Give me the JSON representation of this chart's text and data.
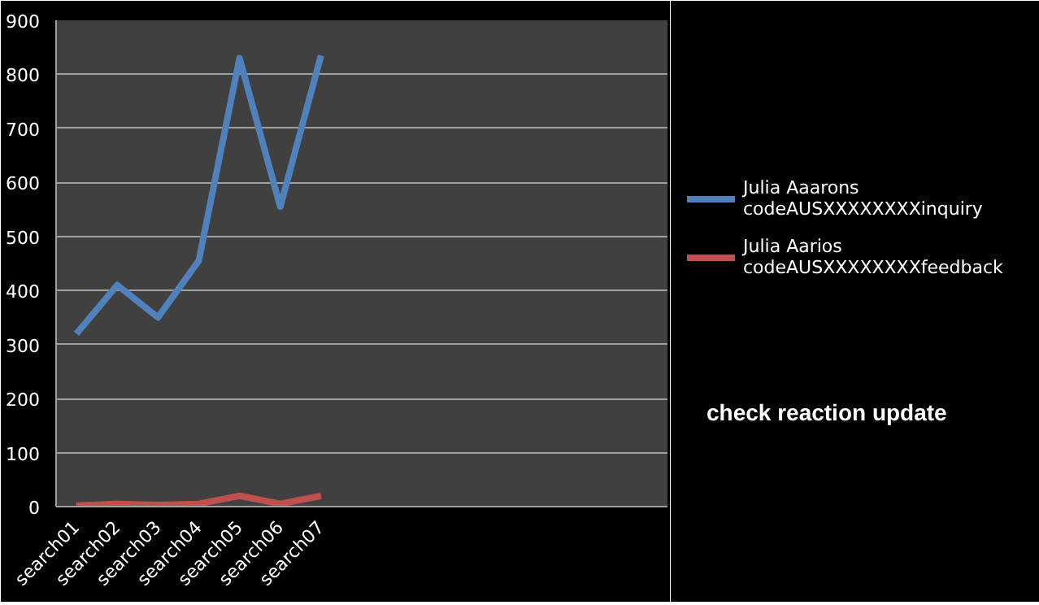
{
  "chart_data": {
    "type": "line",
    "categories": [
      "search01",
      "search02",
      "search03",
      "search04",
      "search05",
      "search06",
      "search07",
      null,
      null,
      null,
      null,
      null,
      null,
      null,
      null
    ],
    "series": [
      {
        "name": "Julia Aaarons codeAUSXXXXXXXXinquiry",
        "color": "#4f81bd",
        "values": [
          320,
          410,
          350,
          455,
          830,
          555,
          835,
          null,
          null,
          null,
          null,
          null,
          null,
          null,
          null
        ]
      },
      {
        "name": "Julia Aarios codeAUSXXXXXXXXfeedback",
        "color": "#c0504d",
        "values": [
          2,
          5,
          3,
          5,
          20,
          5,
          20,
          null,
          null,
          null,
          null,
          null,
          null,
          null,
          null
        ]
      }
    ],
    "ylim": [
      0,
      900
    ],
    "yticks": [
      0,
      100,
      200,
      300,
      400,
      500,
      600,
      700,
      800,
      900
    ],
    "grid": "y",
    "legend": "right",
    "marker": "none",
    "line_style": "solid",
    "annotations": [
      "check reaction update"
    ]
  }
}
